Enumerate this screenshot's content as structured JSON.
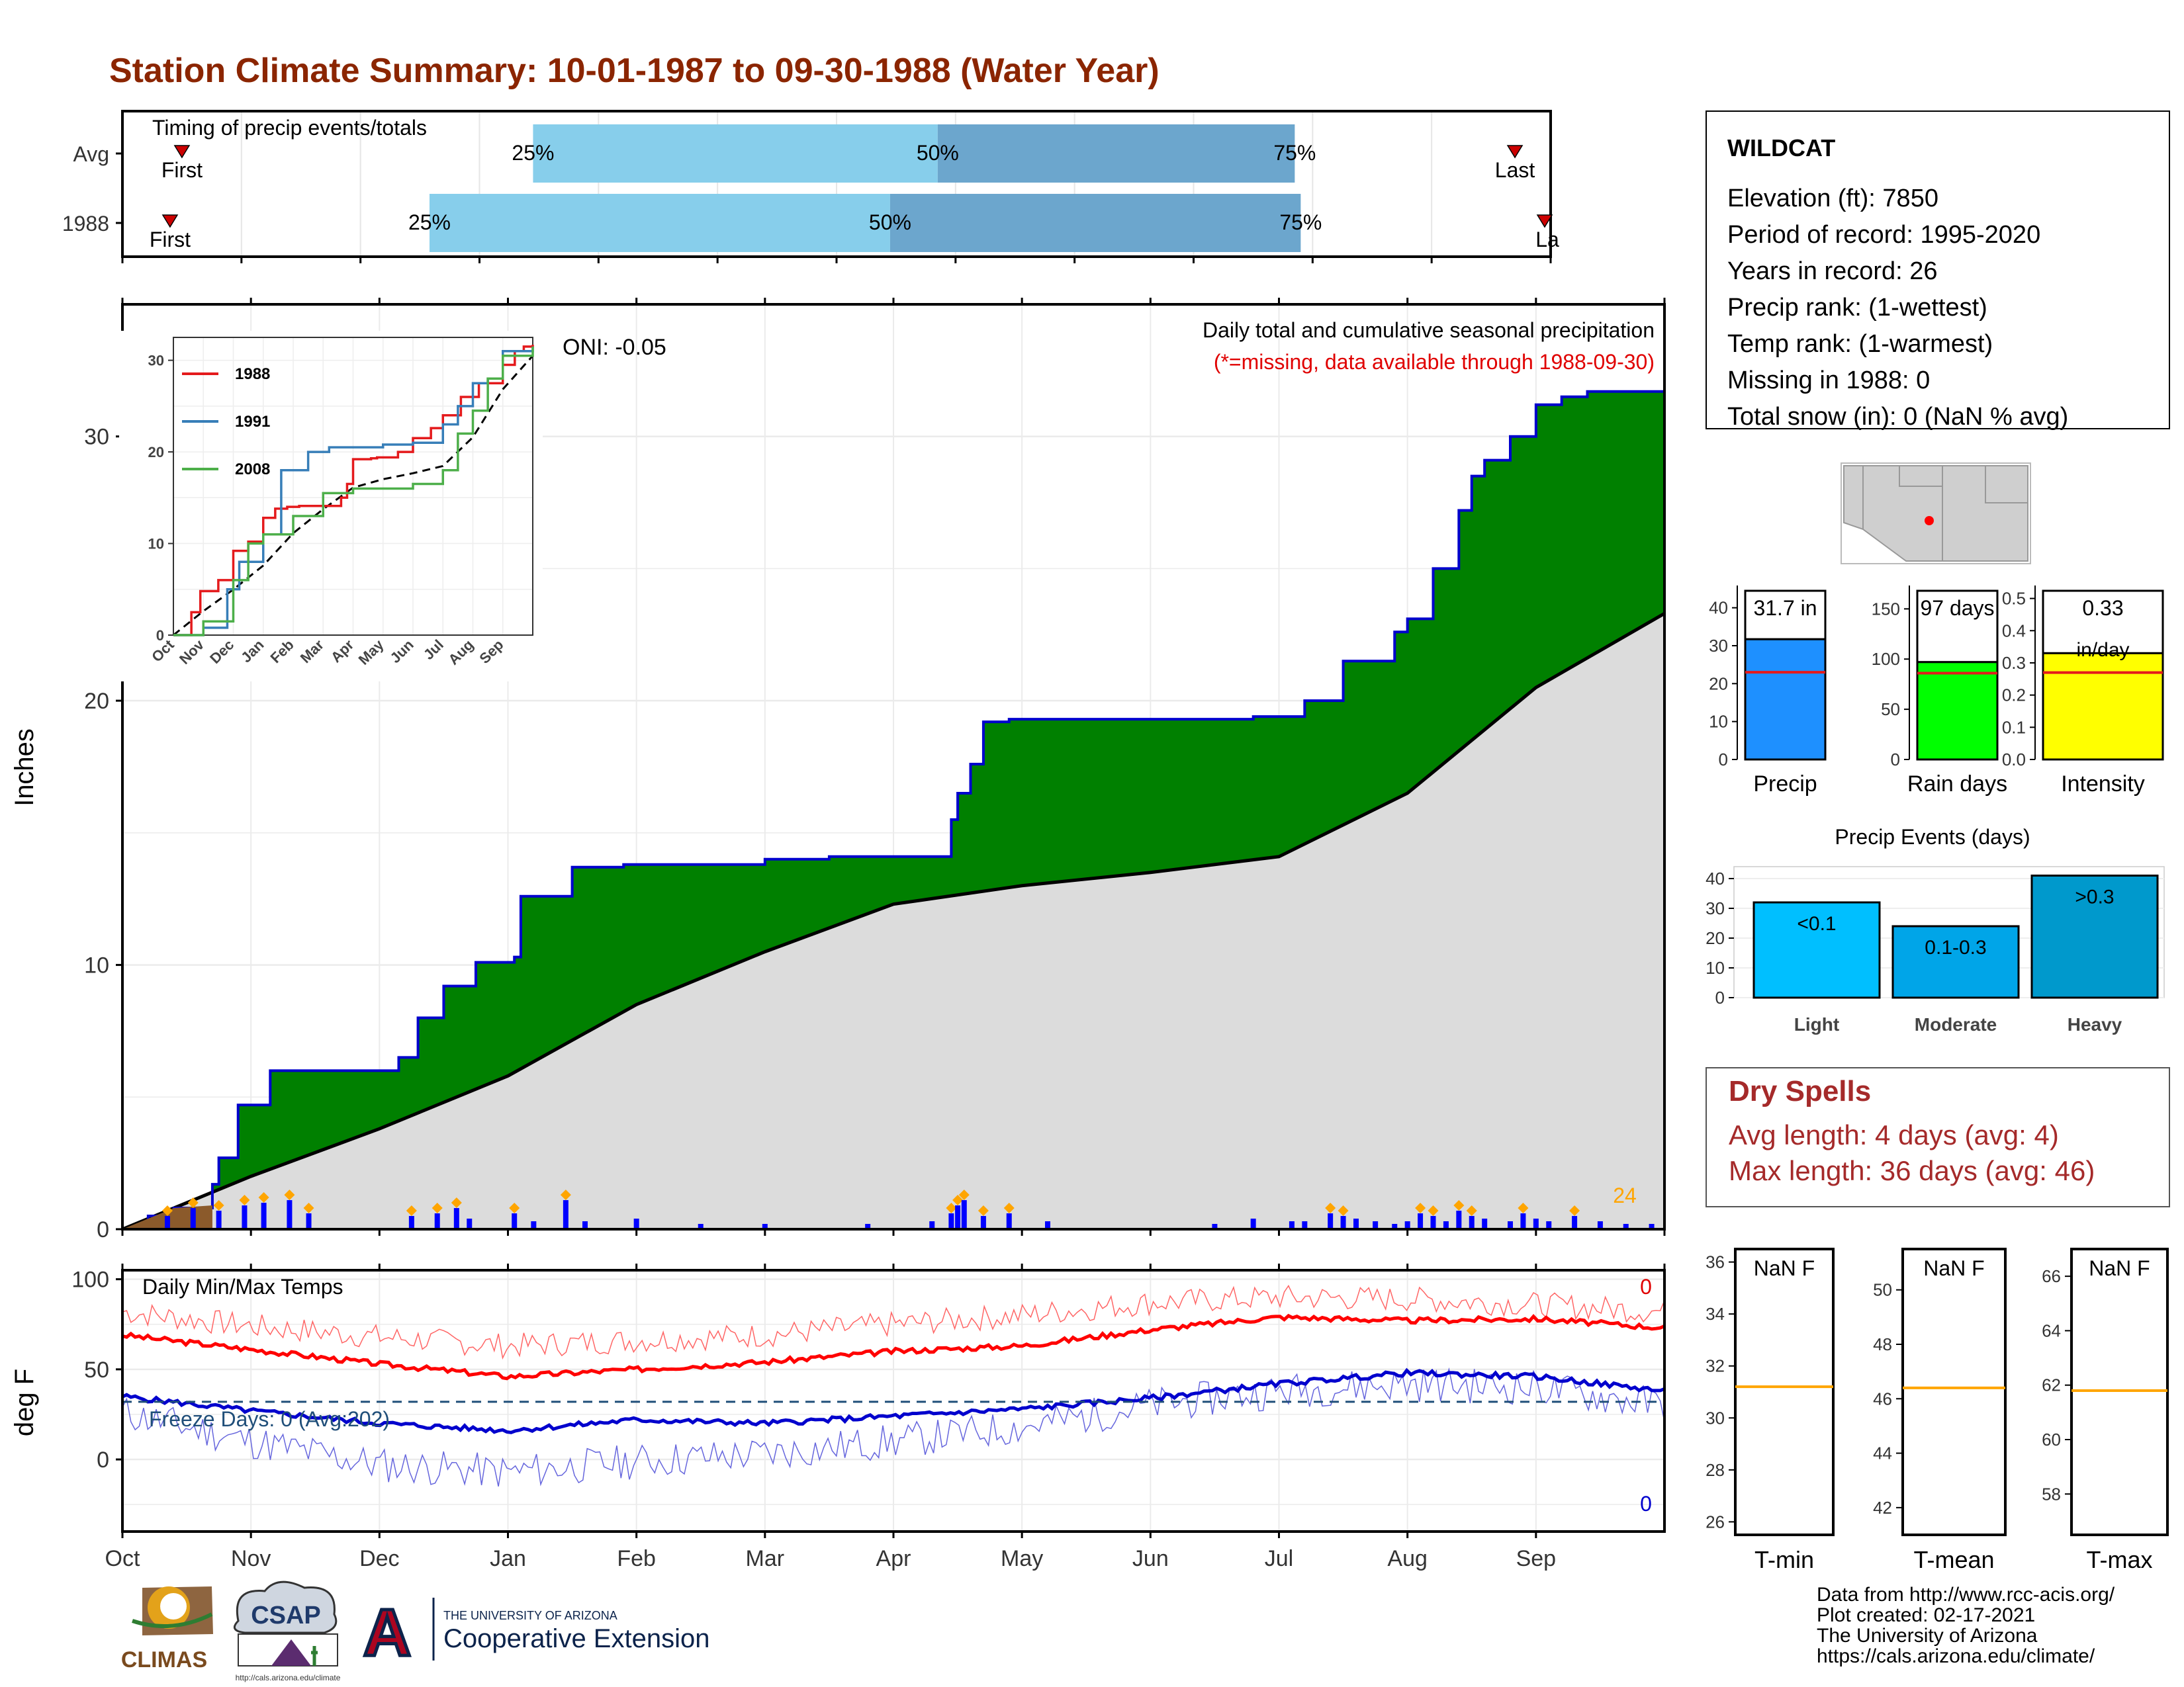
{
  "title": "Station Climate Summary: 10-01-1987 to 09-30-1988 (Water Year)",
  "colors": {
    "title": "#8B2500",
    "precip_fill": "#008000",
    "precip_line": "#0000CD",
    "avg_fill": "#DCDCDC",
    "temp_max": "#FF0000",
    "temp_min": "#0000CD",
    "accent_orange": "#FFA500",
    "bar_light": "#87CEEB",
    "bar_dark": "#6CA6CD",
    "dry_red": "#A52A2A"
  },
  "timing": {
    "label": "Timing of precip events/totals",
    "rows": [
      {
        "name": "Avg",
        "first_label": "First",
        "last_label": "Last",
        "p25": "25%",
        "p50": "50%",
        "p75": "75%",
        "first_month": 0.5,
        "p25_month": 3.45,
        "p50_month": 6.85,
        "p75_month": 9.85,
        "last_month": 11.7
      },
      {
        "name": "1988",
        "first_label": "First",
        "last_label": "La",
        "p25": "25%",
        "p50": "50%",
        "p75": "75%",
        "first_month": 0.4,
        "p25_month": 2.58,
        "p50_month": 6.45,
        "p75_month": 9.9,
        "last_month": 11.95
      }
    ]
  },
  "main_chart": {
    "ylabel": "Inches",
    "header": "Daily total and cumulative seasonal precipitation",
    "subheader": "(*=missing, data available through 1988-09-30)",
    "oni": "ONI: -0.05",
    "max_daily_label": "24",
    "yticks": [
      0,
      10,
      20,
      30
    ],
    "ylim": [
      0,
      35
    ]
  },
  "chart_data": {
    "type": "area",
    "x_unit": "month index from Oct 1 (0=Oct,12=end Sep)",
    "months": [
      "Oct",
      "Nov",
      "Dec",
      "Jan",
      "Feb",
      "Mar",
      "Apr",
      "May",
      "Jun",
      "Jul",
      "Aug",
      "Sep"
    ],
    "cumulative_1988": {
      "x": [
        0,
        0.2,
        0.4,
        0.7,
        0.75,
        0.9,
        1.0,
        1.15,
        1.3,
        1.4,
        2.05,
        2.15,
        2.3,
        2.5,
        2.55,
        2.75,
        3.05,
        3.1,
        3.4,
        3.5,
        3.9,
        3.95,
        4.0,
        4.3,
        4.7,
        5.0,
        5.5,
        6.3,
        6.45,
        6.5,
        6.6,
        6.7,
        6.9,
        7.2,
        7.5,
        8.5,
        8.8,
        9.2,
        9.5,
        9.9,
        10.0,
        10.2,
        10.4,
        10.5,
        10.6,
        10.8,
        11.0,
        11.2,
        11.4,
        12.0
      ],
      "y": [
        0,
        0.5,
        0.8,
        1.7,
        2.7,
        4.7,
        4.7,
        6.0,
        6.0,
        6.0,
        6.0,
        6.5,
        8.0,
        9.2,
        9.2,
        10.1,
        10.3,
        12.6,
        12.6,
        13.7,
        13.8,
        13.8,
        13.8,
        13.8,
        13.8,
        14.0,
        14.1,
        14.1,
        15.5,
        16.5,
        17.6,
        19.2,
        19.3,
        19.3,
        19.3,
        19.3,
        19.4,
        20.0,
        21.5,
        22.6,
        23.1,
        25.0,
        27.2,
        28.5,
        29.1,
        30.0,
        31.2,
        31.5,
        31.7,
        31.7
      ]
    },
    "average_cumulative": {
      "x": [
        0,
        1,
        2,
        3,
        4,
        5,
        6,
        7,
        8,
        9,
        10,
        11,
        12
      ],
      "y": [
        0,
        2.0,
        3.8,
        5.8,
        8.5,
        10.5,
        12.3,
        13.0,
        13.5,
        14.1,
        16.5,
        20.5,
        23.3
      ]
    },
    "inset": {
      "yticks": [
        0,
        10,
        20,
        30
      ],
      "months": [
        "Oct",
        "Nov",
        "Dec",
        "Jan",
        "Feb",
        "Mar",
        "Apr",
        "May",
        "Jun",
        "Jul",
        "Aug",
        "Sep"
      ],
      "series": [
        {
          "name": "1988",
          "color": "#E41A1C",
          "x": [
            0,
            0.6,
            0.9,
            1.5,
            2.0,
            2.5,
            3.0,
            3.4,
            3.8,
            4.2,
            5.0,
            5.6,
            5.8,
            6.0,
            6.6,
            6.8,
            7.5,
            8.0,
            8.6,
            9.0,
            9.6,
            10.2,
            11.0,
            11.4,
            11.7,
            12.0
          ],
          "y": [
            0,
            2.5,
            4.8,
            6.0,
            9.2,
            10.2,
            12.8,
            13.8,
            14.0,
            14.1,
            14.1,
            15.0,
            16.5,
            19.2,
            19.3,
            19.4,
            20.0,
            21.5,
            22.6,
            24.0,
            26.0,
            27.5,
            29.5,
            31.0,
            31.5,
            31.7
          ]
        },
        {
          "name": "1991",
          "color": "#377EB8",
          "x": [
            0,
            1,
            1.8,
            2.2,
            3.0,
            3.6,
            4.5,
            5.2,
            6.0,
            7.0,
            8.0,
            9.0,
            9.5,
            10.0,
            10.5,
            11.0,
            12.0
          ],
          "y": [
            0,
            0.8,
            5.0,
            8.0,
            11.0,
            18.0,
            20.0,
            20.5,
            20.5,
            20.8,
            21.0,
            23.0,
            25.0,
            27.5,
            28.0,
            31.0,
            31.5
          ]
        },
        {
          "name": "2008",
          "color": "#4DAF4A",
          "x": [
            0,
            1.0,
            2.0,
            2.5,
            3.0,
            4.0,
            5.0,
            6.0,
            7.0,
            8.0,
            9.0,
            9.5,
            10.0,
            10.5,
            11.0,
            12.0
          ],
          "y": [
            0,
            1.5,
            6.0,
            10.0,
            11.0,
            13.0,
            15.5,
            16.0,
            16.0,
            16.5,
            18.0,
            22.0,
            24.5,
            28.0,
            30.5,
            31.5
          ]
        }
      ]
    },
    "temps": {
      "ylabel": "deg F",
      "label": "Daily Min/Max Temps",
      "freeze": "Freeze Days: 0 (Avg:202)",
      "count_max": "0",
      "count_min": "0",
      "yticks": [
        0,
        50,
        100
      ],
      "freeze_line": 32,
      "avg_max": {
        "x": [
          0,
          1,
          2,
          3,
          4,
          5,
          6,
          7,
          8,
          9,
          10,
          11,
          12
        ],
        "y": [
          69,
          61,
          53,
          46,
          50,
          54,
          60,
          63,
          72,
          79,
          77,
          78,
          73
        ]
      },
      "avg_min": {
        "x": [
          0,
          1,
          2,
          3,
          4,
          5,
          6,
          7,
          8,
          9,
          10,
          11,
          12
        ],
        "y": [
          35,
          27,
          20,
          16,
          22,
          20,
          24,
          28,
          34,
          42,
          48,
          46,
          38
        ]
      },
      "obs_max": {
        "x": [
          0,
          1,
          2,
          3,
          4,
          5,
          6,
          7,
          8,
          9,
          10,
          11,
          12
        ],
        "y": [
          82,
          74,
          68,
          63,
          66,
          69,
          75,
          80,
          87,
          90,
          89,
          86,
          82
        ]
      },
      "obs_min": {
        "x": [
          0,
          1,
          2,
          3,
          4,
          5,
          6,
          7,
          8,
          9,
          10,
          11,
          12
        ],
        "y": [
          26,
          10,
          -3,
          -7,
          -1,
          3,
          10,
          18,
          30,
          38,
          42,
          40,
          30
        ]
      }
    }
  },
  "station": {
    "name": "WILDCAT",
    "lines": [
      "Elevation (ft): 7850",
      "Period of record: 1995-2020",
      "Years in record: 26",
      "Precip rank:  (1-wettest)",
      "Temp rank:  (1-warmest)",
      "Missing in 1988: 0",
      "Total snow (in): 0 (NaN % avg)"
    ]
  },
  "summary_bars": [
    {
      "name": "Precip",
      "label_line1": "31.7 in",
      "label_line2": "",
      "value": 31.7,
      "avg": 23,
      "ymax": 45,
      "yticks": [
        0,
        10,
        20,
        30,
        40
      ],
      "color": "#1E90FF"
    },
    {
      "name": "Rain days",
      "label_line1": "97 days",
      "label_line2": "",
      "value": 97,
      "avg": 86,
      "ymax": 170,
      "yticks": [
        0,
        50,
        100,
        150
      ],
      "color": "#00FF00"
    },
    {
      "name": "Intensity",
      "label_line1": "0.33",
      "label_line2": "in/day",
      "value": 0.33,
      "avg": 0.27,
      "ymax": 0.53,
      "yticks": [
        "0.0",
        "0.1",
        "0.2",
        "0.3",
        "0.4",
        "0.5"
      ],
      "color": "#FFFF00"
    }
  ],
  "events": {
    "title": "Precip Events (days)",
    "yticks": [
      0,
      10,
      20,
      30,
      40
    ],
    "bars": [
      {
        "name": "Light",
        "label": "<0.1",
        "value": 32,
        "color": "#00BFFF"
      },
      {
        "name": "Moderate",
        "label": "0.1-0.3",
        "value": 24,
        "color": "#00A5E8"
      },
      {
        "name": "Heavy",
        "label": ">0.3",
        "value": 41,
        "color": "#0099CC"
      }
    ]
  },
  "dry_spells": {
    "title": "Dry Spells",
    "avg": "Avg length: 4 days (avg: 4)",
    "max": "Max length: 36 days (avg: 46)"
  },
  "temp_panels": [
    {
      "name": "T-min",
      "label": "NaN F",
      "yticks": [
        26,
        28,
        30,
        32,
        34,
        36
      ],
      "ymin": 25.5,
      "ymax": 36.5,
      "avg": 31.2
    },
    {
      "name": "T-mean",
      "label": "NaN F",
      "yticks": [
        42,
        44,
        46,
        48,
        50
      ],
      "ymin": 41,
      "ymax": 51.5,
      "avg": 46.4
    },
    {
      "name": "T-max",
      "label": "NaN F",
      "yticks": [
        58,
        60,
        62,
        64,
        66
      ],
      "ymin": 56.5,
      "ymax": 67,
      "avg": 61.8
    }
  ],
  "footer": {
    "lines": [
      "Data from http://www.rcc-acis.org/",
      "Plot created: 02-17-2021",
      "The University of Arizona",
      "https://cals.arizona.edu/climate/"
    ],
    "climas": "CLIMAS",
    "csap": "CSAP",
    "csap_url": "http://cals.arizona.edu/climate",
    "ua_small": "THE UNIVERSITY OF ARIZONA",
    "ua_big": "Cooperative Extension",
    "ua_letter": "A"
  }
}
